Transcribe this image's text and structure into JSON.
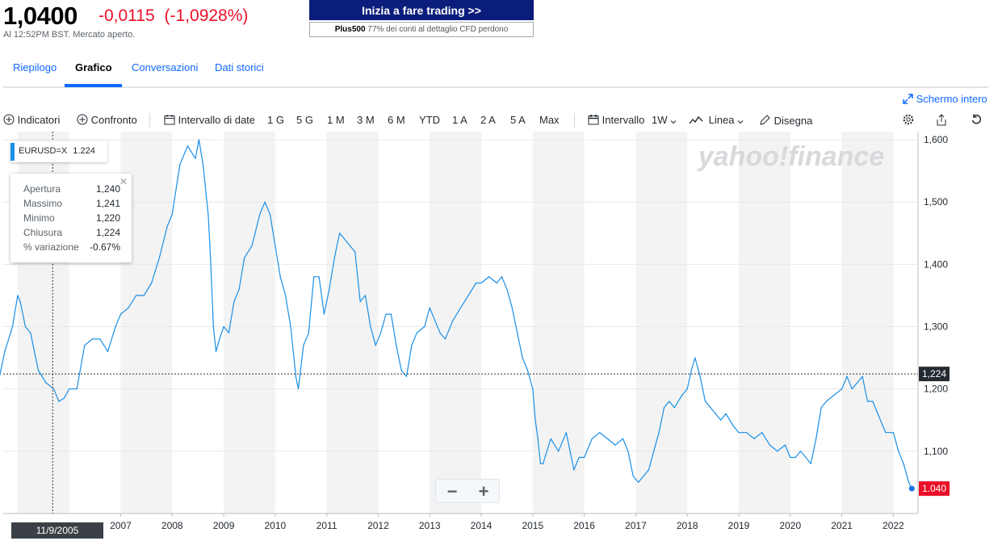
{
  "quote": {
    "price": "1,0400",
    "change": "-0,0115",
    "change_pct": "(-1,0928%)",
    "time": "Al 12:52PM BST. Mercato aperto."
  },
  "ad": {
    "button": "Inizia a fare trading >>",
    "brand": "Plus500",
    "disclaimer": " 77% dei conti al dettaglio CFD perdono"
  },
  "tabs": [
    "Riepilogo",
    "Grafico",
    "Conversazioni",
    "Dati storici"
  ],
  "fullscreen_label": "Schermo intero",
  "toolbar": {
    "indicators": "Indicatori",
    "compare": "Confronto",
    "date_range": "Intervallo di date",
    "ranges": [
      "1 G",
      "5 G",
      "1 M",
      "3 M",
      "6 M",
      "YTD",
      "1 A",
      "2 A",
      "5 A",
      "Max"
    ],
    "interval": "Intervallo",
    "interval_value": "1W",
    "line": "Linea",
    "draw": "Disegna"
  },
  "legend": {
    "symbol": "EURUSD=X",
    "value": "1.224"
  },
  "tooltip": {
    "rows": [
      {
        "label": "Apertura",
        "value": "1,240"
      },
      {
        "label": "Massimo",
        "value": "1,241"
      },
      {
        "label": "Minimo",
        "value": "1,220"
      },
      {
        "label": "Chiusura",
        "value": "1,224"
      },
      {
        "label": "% variazione",
        "value": "-0.67%"
      }
    ]
  },
  "zoom": {
    "minus": "−",
    "plus": "+"
  },
  "watermark": "yahoo!finance",
  "colors": {
    "line": "#1a8fe6",
    "negative": "#eb0f29",
    "accent": "#0f69ff",
    "band": "#f3f3f3"
  },
  "chart_data": {
    "type": "line",
    "series": [
      {
        "name": "EURUSD=X",
        "x": [
          2004.6,
          2004.75,
          2004.9,
          2005.0,
          2005.05,
          2005.15,
          2005.25,
          2005.4,
          2005.55,
          2005.7,
          2005.8,
          2005.9,
          2006.0,
          2006.15,
          2006.3,
          2006.45,
          2006.6,
          2006.75,
          2006.9,
          2007.0,
          2007.15,
          2007.3,
          2007.45,
          2007.6,
          2007.75,
          2007.9,
          2008.0,
          2008.15,
          2008.3,
          2008.45,
          2008.52,
          2008.6,
          2008.7,
          2008.75,
          2008.8,
          2008.85,
          2008.92,
          2009.0,
          2009.1,
          2009.2,
          2009.3,
          2009.4,
          2009.55,
          2009.7,
          2009.8,
          2009.9,
          2010.0,
          2010.1,
          2010.2,
          2010.3,
          2010.4,
          2010.45,
          2010.55,
          2010.65,
          2010.75,
          2010.85,
          2010.95,
          2011.05,
          2011.15,
          2011.25,
          2011.35,
          2011.45,
          2011.55,
          2011.65,
          2011.75,
          2011.85,
          2011.95,
          2012.05,
          2012.15,
          2012.25,
          2012.35,
          2012.45,
          2012.55,
          2012.65,
          2012.75,
          2012.9,
          2013.0,
          2013.1,
          2013.2,
          2013.3,
          2013.45,
          2013.6,
          2013.75,
          2013.9,
          2014.0,
          2014.15,
          2014.3,
          2014.4,
          2014.5,
          2014.6,
          2014.7,
          2014.8,
          2014.9,
          2015.0,
          2015.05,
          2015.1,
          2015.15,
          2015.2,
          2015.35,
          2015.5,
          2015.65,
          2015.8,
          2015.9,
          2016.0,
          2016.15,
          2016.3,
          2016.45,
          2016.6,
          2016.75,
          2016.85,
          2016.95,
          2017.05,
          2017.15,
          2017.25,
          2017.35,
          2017.45,
          2017.55,
          2017.65,
          2017.75,
          2017.9,
          2018.0,
          2018.08,
          2018.15,
          2018.25,
          2018.35,
          2018.45,
          2018.55,
          2018.65,
          2018.75,
          2018.9,
          2019.0,
          2019.15,
          2019.3,
          2019.45,
          2019.6,
          2019.75,
          2019.9,
          2020.0,
          2020.1,
          2020.2,
          2020.3,
          2020.4,
          2020.5,
          2020.6,
          2020.7,
          2020.85,
          2021.0,
          2021.1,
          2021.2,
          2021.3,
          2021.4,
          2021.5,
          2021.6,
          2021.7,
          2021.85,
          2022.0,
          2022.1,
          2022.2,
          2022.3,
          2022.36
        ],
        "y": [
          1.2,
          1.26,
          1.3,
          1.35,
          1.34,
          1.3,
          1.29,
          1.23,
          1.21,
          1.2,
          1.18,
          1.185,
          1.2,
          1.2,
          1.27,
          1.28,
          1.28,
          1.26,
          1.3,
          1.32,
          1.33,
          1.35,
          1.35,
          1.37,
          1.41,
          1.46,
          1.48,
          1.56,
          1.59,
          1.57,
          1.6,
          1.56,
          1.48,
          1.4,
          1.3,
          1.26,
          1.28,
          1.3,
          1.29,
          1.34,
          1.36,
          1.41,
          1.43,
          1.48,
          1.5,
          1.48,
          1.43,
          1.38,
          1.35,
          1.3,
          1.22,
          1.2,
          1.27,
          1.29,
          1.38,
          1.38,
          1.32,
          1.36,
          1.41,
          1.45,
          1.44,
          1.43,
          1.42,
          1.34,
          1.35,
          1.3,
          1.27,
          1.29,
          1.32,
          1.32,
          1.27,
          1.23,
          1.22,
          1.27,
          1.29,
          1.3,
          1.33,
          1.31,
          1.29,
          1.28,
          1.31,
          1.33,
          1.35,
          1.37,
          1.37,
          1.38,
          1.37,
          1.38,
          1.36,
          1.33,
          1.29,
          1.25,
          1.23,
          1.2,
          1.15,
          1.12,
          1.08,
          1.08,
          1.12,
          1.1,
          1.13,
          1.07,
          1.09,
          1.09,
          1.12,
          1.13,
          1.12,
          1.11,
          1.12,
          1.1,
          1.06,
          1.05,
          1.06,
          1.07,
          1.1,
          1.13,
          1.17,
          1.18,
          1.17,
          1.19,
          1.2,
          1.23,
          1.25,
          1.22,
          1.18,
          1.17,
          1.16,
          1.15,
          1.16,
          1.14,
          1.13,
          1.13,
          1.12,
          1.13,
          1.11,
          1.1,
          1.11,
          1.09,
          1.09,
          1.1,
          1.09,
          1.08,
          1.12,
          1.17,
          1.18,
          1.19,
          1.2,
          1.22,
          1.2,
          1.21,
          1.22,
          1.18,
          1.18,
          1.16,
          1.13,
          1.13,
          1.1,
          1.08,
          1.05,
          1.04
        ]
      }
    ],
    "xlim": [
      2004.72,
      2022.48
    ],
    "ylim": [
      1.0,
      1.6
    ],
    "x_ticks": [
      "2007",
      "2008",
      "2009",
      "2010",
      "2011",
      "2012",
      "2013",
      "2014",
      "2015",
      "2016",
      "2017",
      "2018",
      "2019",
      "2020",
      "2021",
      "2022"
    ],
    "x_tick_values": [
      2007,
      2008,
      2009,
      2010,
      2011,
      2012,
      2013,
      2014,
      2015,
      2016,
      2017,
      2018,
      2019,
      2020,
      2021,
      2022
    ],
    "y_ticks": [
      "1,600",
      "1,500",
      "1,400",
      "1,300",
      "1,200",
      "1,100"
    ],
    "y_tick_values": [
      1.6,
      1.5,
      1.4,
      1.3,
      1.2,
      1.1
    ],
    "crosshair": {
      "x": 2005.68,
      "y": 1.224,
      "x_label": "11/9/2005",
      "y_label": "1,224"
    },
    "last_value": {
      "x": 2022.36,
      "y": 1.04,
      "label": "1.040"
    },
    "grid": true,
    "alternate_year_bands": true
  }
}
